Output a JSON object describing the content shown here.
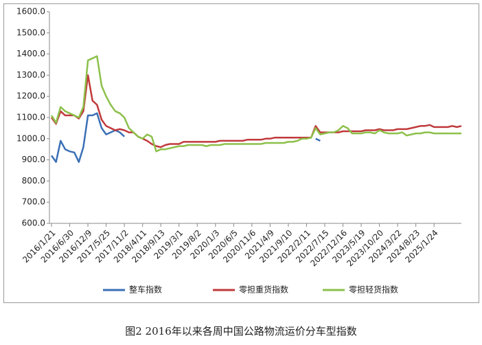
{
  "chart_data": {
    "type": "line",
    "caption": "图2 2016年以来各周中国公路物流运价分车型指数",
    "categories": [
      "2016/1/21",
      null,
      null,
      null,
      "2016/6/30",
      null,
      null,
      null,
      "2016/12/9",
      null,
      null,
      null,
      "2017/5/25",
      null,
      null,
      null,
      "2017/11/2",
      null,
      null,
      null,
      "2018/4/11",
      null,
      null,
      null,
      "2018/9/13",
      null,
      null,
      null,
      "2019/3/1",
      null,
      null,
      null,
      "2019/8/2",
      null,
      null,
      null,
      "2020/1/3",
      null,
      null,
      null,
      "2020/6/5",
      null,
      null,
      null,
      "2020/11/6",
      null,
      null,
      null,
      "2021/4/9",
      null,
      null,
      null,
      "2021/9/10",
      null,
      null,
      null,
      "2022/2/11",
      null,
      null,
      null,
      "2022/7/15",
      null,
      null,
      null,
      "2022/12/16",
      null,
      null,
      null,
      "2023/5/19",
      null,
      null,
      null,
      "2023/10/20",
      null,
      null,
      null,
      "2024/3/22",
      null,
      null,
      null,
      "2024/8/23",
      null,
      null,
      null,
      "2025/1/24",
      null,
      null,
      null,
      null,
      null,
      null
    ],
    "series": [
      {
        "name": "整车指数",
        "color": "#3a6fb5",
        "values": [
          920,
          890,
          990,
          950,
          940,
          935,
          890,
          960,
          1110,
          1110,
          1120,
          1050,
          1020,
          1030,
          1040,
          1030,
          1010,
          null,
          null,
          null,
          null,
          null,
          null,
          null,
          null,
          null,
          null,
          null,
          null,
          null,
          null,
          null,
          null,
          null,
          null,
          null,
          null,
          null,
          null,
          null,
          null,
          null,
          null,
          null,
          null,
          null,
          null,
          null,
          null,
          null,
          null,
          null,
          null,
          null,
          null,
          null,
          null,
          null,
          1000,
          990,
          null,
          null,
          null,
          null,
          null,
          null,
          null,
          null,
          null,
          null,
          null,
          null,
          null,
          null,
          null,
          null,
          null,
          null,
          null,
          null,
          null,
          null,
          null,
          null,
          null,
          null,
          null,
          null,
          null,
          null,
          null
        ]
      },
      {
        "name": "零担重货指数",
        "color": "#c0393b",
        "values": [
          1100,
          1070,
          1130,
          1110,
          1110,
          1110,
          1095,
          1130,
          1300,
          1180,
          1160,
          1090,
          1060,
          1050,
          1040,
          1045,
          1040,
          1030,
          1030,
          1010,
          1000,
          990,
          975,
          965,
          960,
          970,
          975,
          975,
          975,
          985,
          985,
          985,
          985,
          985,
          985,
          985,
          985,
          990,
          990,
          990,
          990,
          990,
          990,
          995,
          995,
          995,
          995,
          1000,
          1000,
          1005,
          1005,
          1005,
          1005,
          1005,
          1005,
          1005,
          1005,
          1005,
          1060,
          1030,
          1030,
          1030,
          1030,
          1030,
          1035,
          1035,
          1035,
          1035,
          1035,
          1040,
          1040,
          1040,
          1045,
          1040,
          1040,
          1040,
          1045,
          1045,
          1045,
          1050,
          1055,
          1060,
          1060,
          1065,
          1055,
          1055,
          1055,
          1055,
          1060,
          1055,
          1060
        ]
      },
      {
        "name": "零担轻货指数",
        "color": "#8cc04a",
        "values": [
          1110,
          1075,
          1150,
          1130,
          1120,
          1110,
          1100,
          1150,
          1370,
          1380,
          1390,
          1250,
          1200,
          1160,
          1130,
          1120,
          1100,
          1050,
          1030,
          1010,
          1000,
          1020,
          1010,
          940,
          950,
          950,
          955,
          960,
          965,
          965,
          970,
          970,
          970,
          970,
          965,
          970,
          970,
          970,
          975,
          975,
          975,
          975,
          975,
          975,
          975,
          975,
          975,
          980,
          980,
          980,
          980,
          980,
          985,
          985,
          990,
          1000,
          1000,
          1005,
          1050,
          1020,
          1025,
          1030,
          1030,
          1040,
          1060,
          1050,
          1025,
          1025,
          1025,
          1030,
          1030,
          1025,
          1040,
          1030,
          1025,
          1025,
          1025,
          1030,
          1015,
          1020,
          1025,
          1025,
          1030,
          1030,
          1025,
          1025,
          1025,
          1025,
          1025,
          1025,
          1025
        ]
      }
    ],
    "ylim": [
      600,
      1600
    ],
    "yticks": [
      {
        "value": 600,
        "label": "600.0"
      },
      {
        "value": 700,
        "label": "700.0"
      },
      {
        "value": 800,
        "label": "800.0"
      },
      {
        "value": 900,
        "label": "900.0"
      },
      {
        "value": 1000,
        "label": "1000.0"
      },
      {
        "value": 1100,
        "label": "1100.0"
      },
      {
        "value": 1200,
        "label": "1200.0"
      },
      {
        "value": 1300,
        "label": "1300.0"
      },
      {
        "value": 1400,
        "label": "1400.0"
      },
      {
        "value": 1500,
        "label": "1500.0"
      },
      {
        "value": 1600,
        "label": "1600.0"
      }
    ]
  }
}
